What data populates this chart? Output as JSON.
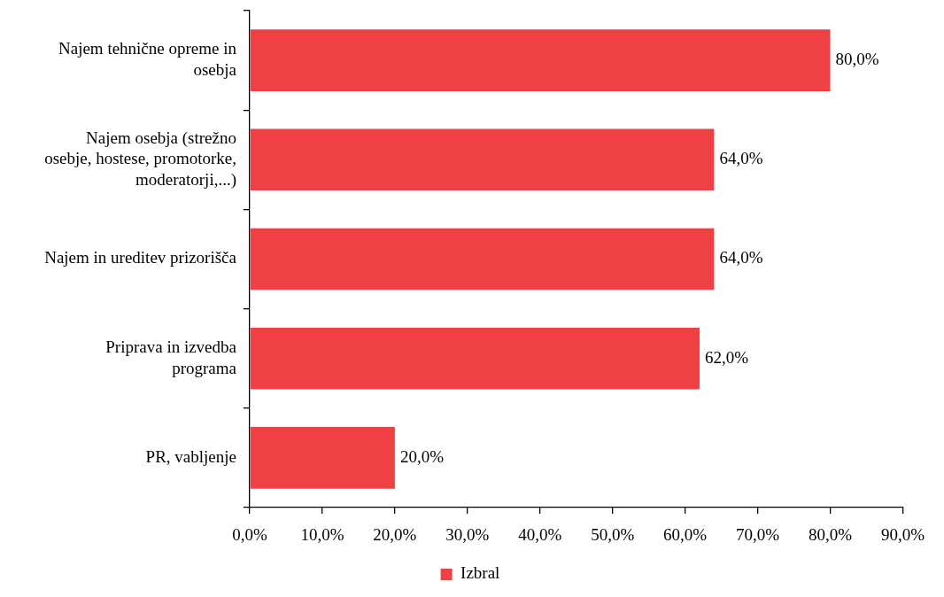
{
  "chart_data": {
    "type": "bar",
    "orientation": "horizontal",
    "categories": [
      "Najem tehnične opreme in osebja",
      "Najem osebja (strežno osebje, hostese, promotorke, moderatorji,...)",
      "Najem in ureditev prizorišča",
      "Priprava in izvedba programa",
      "PR, vabljenje"
    ],
    "series": [
      {
        "name": "Izbral",
        "color": "#ef4044",
        "values": [
          80,
          64,
          64,
          62,
          20
        ],
        "value_labels": [
          "80,0%",
          "64,0%",
          "64,0%",
          "62,0%",
          "20,0%"
        ]
      }
    ],
    "xlim": [
      0,
      90
    ],
    "xticks": [
      {
        "value": 0,
        "label": "0,0%"
      },
      {
        "value": 10,
        "label": "10,0%"
      },
      {
        "value": 20,
        "label": "20,0%"
      },
      {
        "value": 30,
        "label": "30,0%"
      },
      {
        "value": 40,
        "label": "40,0%"
      },
      {
        "value": 50,
        "label": "50,0%"
      },
      {
        "value": 60,
        "label": "60,0%"
      },
      {
        "value": 70,
        "label": "70,0%"
      },
      {
        "value": 80,
        "label": "80,0%"
      },
      {
        "value": 90,
        "label": "90,0%"
      }
    ],
    "grid": false,
    "legend": "bottom"
  }
}
